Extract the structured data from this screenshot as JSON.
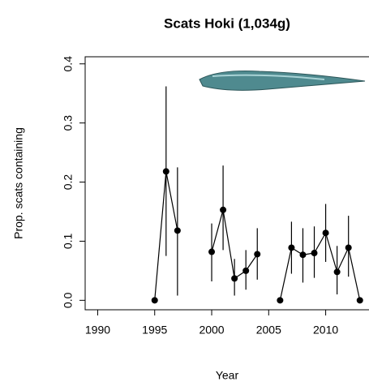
{
  "chart_data": {
    "type": "line",
    "title": "Scats Hoki (1,034g)",
    "x_label": "Year",
    "y_label": "Prop. scats containing",
    "x": [
      1995,
      1996,
      1997,
      1998,
      1999,
      2000,
      2001,
      2002,
      2003,
      2004,
      2005,
      2006,
      2007,
      2008,
      2009,
      2010,
      2011,
      2012,
      2013
    ],
    "values": [
      0,
      0.218,
      0.118,
      null,
      null,
      0.082,
      0.153,
      0.037,
      0.05,
      0.078,
      null,
      0,
      0.089,
      0.077,
      0.08,
      0.114,
      0.048,
      0.089,
      0
    ],
    "lower": [
      null,
      0.075,
      0.008,
      null,
      null,
      0.032,
      0.085,
      0.008,
      0.018,
      0.035,
      null,
      null,
      0.045,
      0.03,
      0.038,
      0.065,
      0.01,
      0.04,
      null
    ],
    "upper": [
      null,
      0.362,
      0.225,
      null,
      null,
      0.13,
      0.228,
      0.07,
      0.085,
      0.122,
      null,
      null,
      0.133,
      0.122,
      0.125,
      0.163,
      0.092,
      0.143,
      null
    ],
    "color": "#000000",
    "xlim": [
      1988.9,
      2013.8
    ],
    "xticks": [
      1990,
      1995,
      2000,
      2005,
      2010
    ],
    "ylim": [
      -0.016,
      0.412
    ],
    "yticks": [
      {
        "value": 0,
        "label": "0.0"
      },
      0.1,
      0.2,
      0.3,
      0.4
    ]
  }
}
